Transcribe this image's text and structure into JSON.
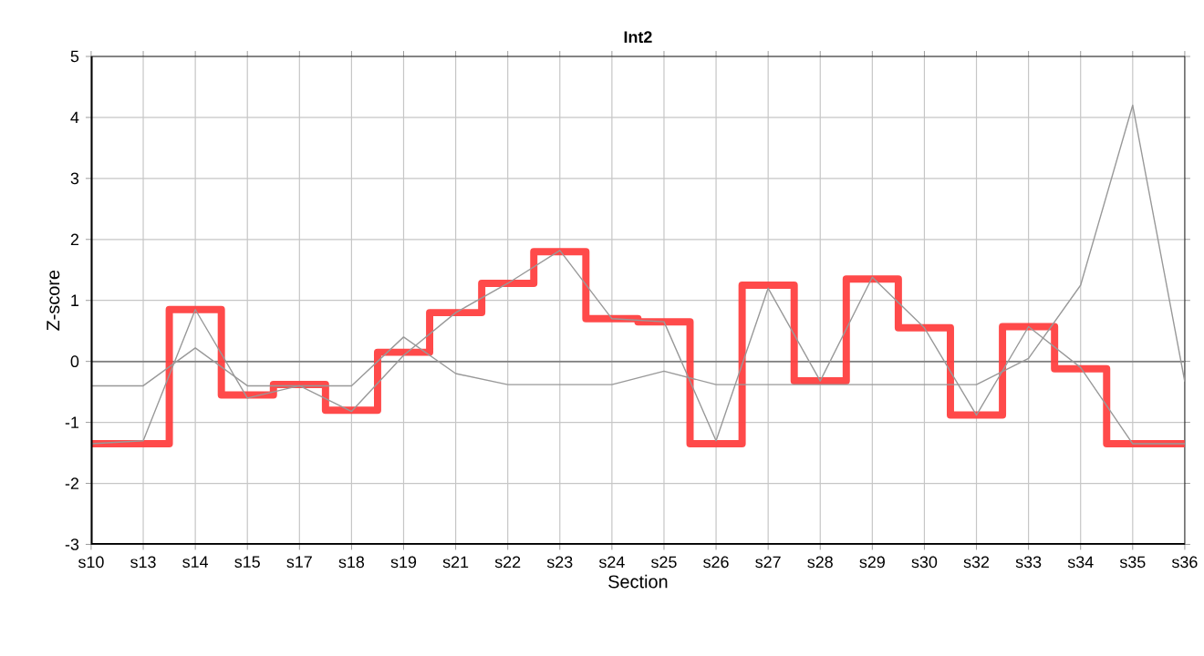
{
  "chart_data": {
    "type": "line",
    "title": "Int2",
    "xlabel": "Section",
    "ylabel": "Z-score",
    "categories": [
      "s10",
      "s13",
      "s14",
      "s15",
      "s17",
      "s18",
      "s19",
      "s21",
      "s22",
      "s23",
      "s24",
      "s25",
      "s26",
      "s27",
      "s28",
      "s29",
      "s30",
      "s32",
      "s33",
      "s34",
      "s35",
      "s36"
    ],
    "ylim": [
      -3,
      5
    ],
    "yticks": [
      -3,
      -2,
      -1,
      0,
      1,
      2,
      3,
      4,
      5
    ],
    "grid": true,
    "marker": "none",
    "ref_lines": [
      {
        "axis": "y",
        "value": 0,
        "color": "#808080"
      }
    ],
    "series": [
      {
        "color": "#999999",
        "values": [
          -0.4,
          -0.4,
          0.22,
          -0.4,
          -0.4,
          -0.4,
          0.4,
          -0.2,
          -0.38,
          -0.38,
          -0.38,
          -0.16,
          -0.38,
          -0.38,
          -0.38,
          -0.38,
          -0.38,
          -0.38,
          0.05,
          1.25,
          4.2,
          -0.33
        ]
      },
      {
        "color": "#999999",
        "values": [
          -1.35,
          -1.3,
          0.85,
          -0.6,
          -0.4,
          -0.82,
          0.1,
          0.8,
          1.28,
          1.82,
          0.7,
          0.65,
          -1.3,
          1.2,
          -0.32,
          1.38,
          0.55,
          -0.88,
          0.57,
          -0.1,
          -1.35,
          -1.35
        ]
      },
      {
        "type": "step",
        "color": "#ff4040",
        "values": [
          -1.35,
          -1.35,
          0.85,
          -0.55,
          -0.38,
          -0.8,
          0.15,
          0.8,
          1.28,
          1.8,
          0.7,
          0.65,
          -1.35,
          1.25,
          -0.32,
          1.35,
          0.55,
          -0.88,
          0.57,
          -0.12,
          -1.35,
          -1.35
        ]
      }
    ]
  }
}
